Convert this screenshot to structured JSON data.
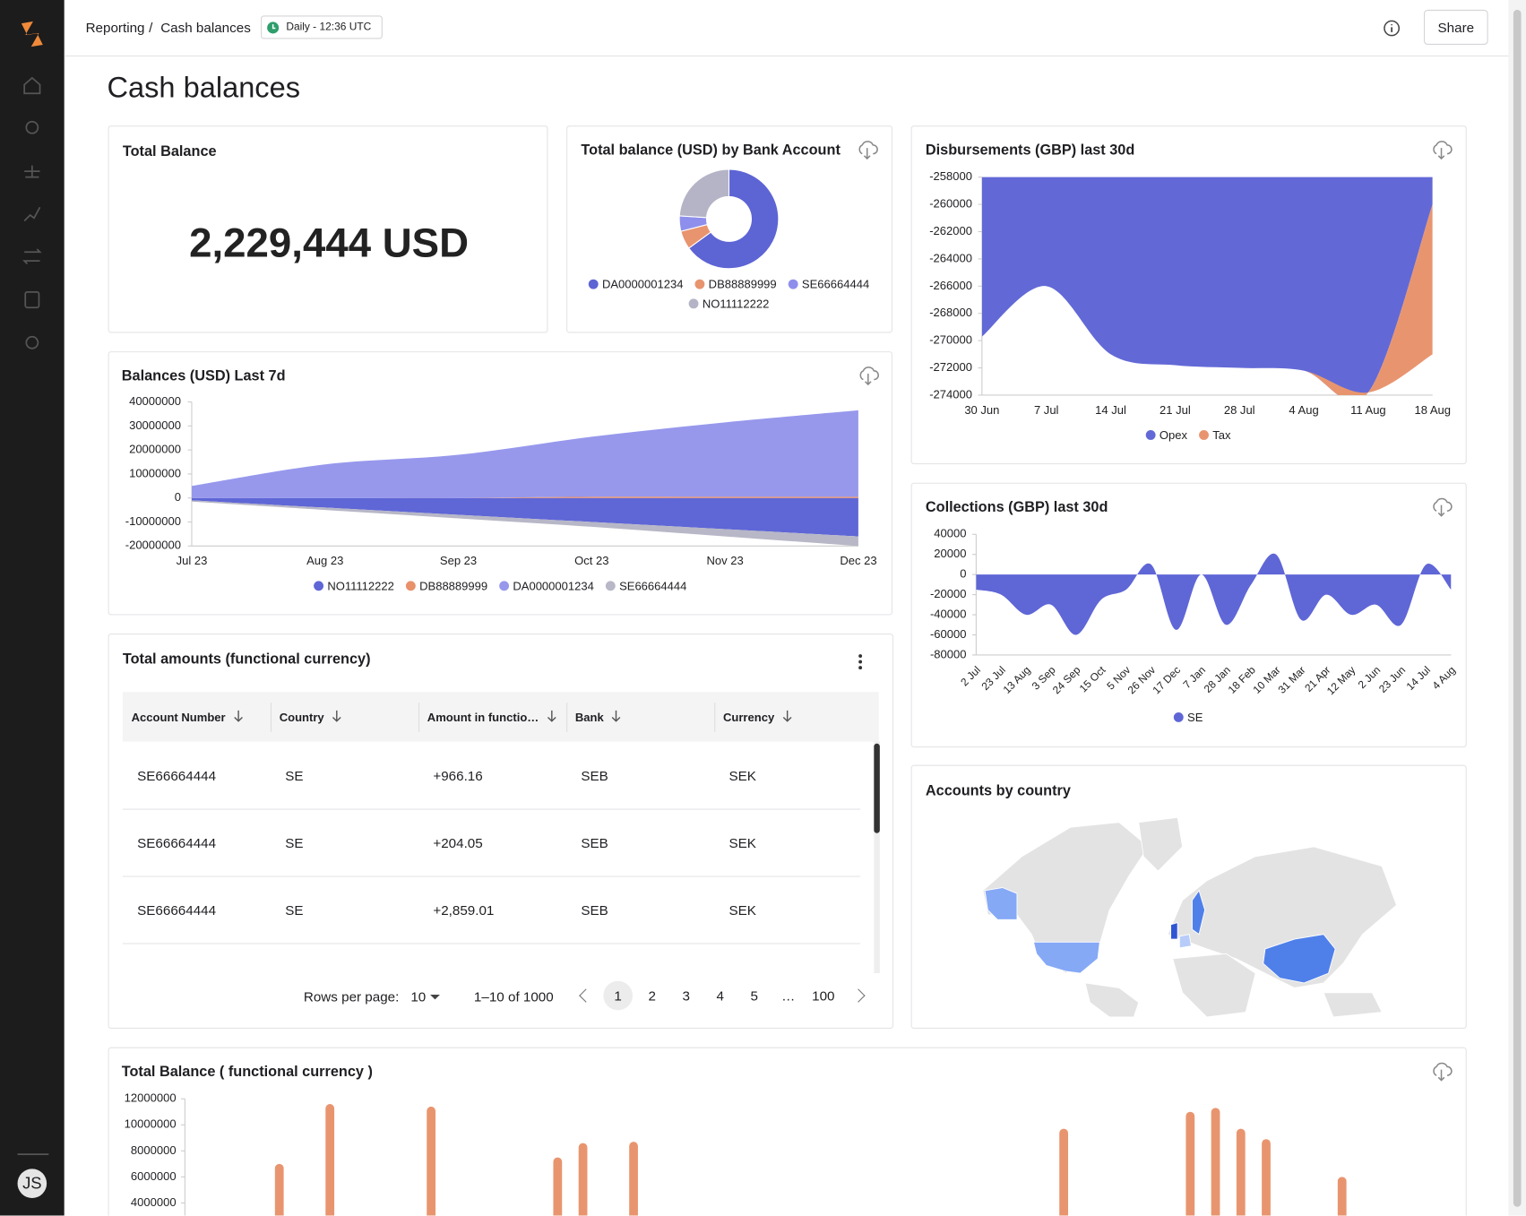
{
  "breadcrumb": [
    "Reporting",
    "Cash balances"
  ],
  "breadcrumb_separator": "/",
  "schedule": "Daily - 12:36 UTC",
  "share": "Share",
  "page_title": "Cash balances",
  "user_initials": "JS",
  "kpi": {
    "title": "Total Balance",
    "value": "2,229,444 USD"
  },
  "table": {
    "title": "Total amounts (functional currency)",
    "columns": [
      "Account Number",
      "Country",
      "Amount in functio…",
      "Bank",
      "Currency"
    ],
    "rows": [
      [
        "SE66664444",
        "SE",
        "+966.16",
        "SEB",
        "SEK"
      ],
      [
        "SE66664444",
        "SE",
        "+204.05",
        "SEB",
        "SEK"
      ],
      [
        "SE66664444",
        "SE",
        "+2,859.01",
        "SEB",
        "SEK"
      ]
    ]
  },
  "pagination": {
    "rows_per_page_label": "Rows per page:",
    "rows_per_page": "10",
    "range": "1–10 of 1000",
    "pages": [
      "1",
      "2",
      "3",
      "4",
      "5",
      "…",
      "100"
    ]
  },
  "map": {
    "title": "Accounts by country"
  },
  "chart_data": [
    {
      "type": "pie",
      "title": "Total balance (USD) by Bank Account",
      "categories": [
        "DA0000001234",
        "DB88889999",
        "SE66664444",
        "NO11112222"
      ],
      "values": [
        65,
        6,
        5,
        24
      ],
      "colors": [
        "#5d64d4",
        "#e8946f",
        "#8e8fec",
        "#b4b4c6"
      ]
    },
    {
      "type": "area",
      "title": "Balances (USD) Last 7d",
      "categories": [
        "Jul 23",
        "Aug 23",
        "Sep 23",
        "Oct 23",
        "Nov 23",
        "Dec 23"
      ],
      "series": [
        {
          "name": "NO11112222",
          "color": "#5f66d6",
          "values": [
            -1000000,
            -4000000,
            -7000000,
            -10000000,
            -13000000,
            -16000000
          ]
        },
        {
          "name": "DB88889999",
          "color": "#e8916b",
          "values": [
            0,
            0,
            0,
            500000,
            500000,
            500000
          ]
        },
        {
          "name": "DA0000001234",
          "color": "#9798ec",
          "values": [
            5000000,
            14000000,
            18000000,
            25000000,
            31000000,
            36000000
          ]
        },
        {
          "name": "SE66664444",
          "color": "#b7b7c7",
          "values": [
            -500000,
            -1000000,
            -1500000,
            -2000000,
            -3000000,
            -4000000
          ]
        }
      ],
      "ylim": [
        -20000000,
        40000000
      ],
      "yticks": [
        40000000,
        30000000,
        20000000,
        10000000,
        0,
        -10000000,
        -20000000
      ]
    },
    {
      "type": "area",
      "title": "Disbursements (GBP) last 30d",
      "categories": [
        "30 Jun",
        "7 Jul",
        "14 Jul",
        "21 Jul",
        "28 Jul",
        "4 Aug",
        "11 Aug",
        "18 Aug"
      ],
      "series": [
        {
          "name": "Opex",
          "color": "#6269d6",
          "values": [
            -269700,
            -266000,
            -271000,
            -271800,
            -272000,
            -272200,
            -273800,
            -260000
          ]
        },
        {
          "name": "Tax",
          "color": "#e8956f",
          "values": [
            0,
            0,
            0,
            0,
            0,
            0,
            0,
            -11000
          ]
        }
      ],
      "ylim": [
        -274000,
        -258000
      ],
      "yticks": [
        -258000,
        -260000,
        -262000,
        -264000,
        -266000,
        -268000,
        -270000,
        -272000,
        -274000
      ]
    },
    {
      "type": "area",
      "title": "Collections (GBP) last 30d",
      "categories": [
        "2 Jul",
        "23 Jul",
        "13 Aug",
        "3 Sep",
        "24 Sep",
        "15 Oct",
        "5 Nov",
        "26 Nov",
        "17 Dec",
        "7 Jan",
        "28 Jan",
        "18 Feb",
        "10 Mar",
        "31 Mar",
        "21 Apr",
        "12 May",
        "2 Jun",
        "23 Jun",
        "14 Jul",
        "4 Aug"
      ],
      "series": [
        {
          "name": "SE",
          "color": "#5f66d6",
          "values": [
            -15000,
            -20000,
            -40000,
            -30000,
            -60000,
            -25000,
            -15000,
            10000,
            -55000,
            0,
            -50000,
            -10000,
            20000,
            -45000,
            -20000,
            -40000,
            -30000,
            -50000,
            10000,
            -15000
          ]
        }
      ],
      "ylim": [
        -80000,
        40000
      ],
      "yticks": [
        40000,
        20000,
        0,
        -20000,
        -40000,
        -60000,
        -80000
      ]
    },
    {
      "type": "bar",
      "title": "Total Balance ( functional currency )",
      "color": "#e8956f",
      "categories": [
        null,
        null,
        null,
        null,
        null,
        null,
        null,
        null,
        null,
        null,
        null,
        null,
        null,
        null,
        null,
        null,
        null,
        null,
        null,
        null,
        null,
        null,
        null,
        null,
        null,
        null,
        null,
        null,
        null,
        null,
        null,
        null,
        null,
        null,
        null,
        null,
        null,
        null,
        null,
        null,
        null,
        null,
        null,
        null,
        null,
        null,
        null,
        null,
        null,
        null
      ],
      "values": [
        null,
        null,
        null,
        7000000,
        null,
        11600000,
        null,
        null,
        null,
        11400000,
        null,
        null,
        null,
        null,
        7500000,
        8600000,
        null,
        8700000,
        null,
        null,
        null,
        null,
        null,
        null,
        null,
        null,
        null,
        null,
        null,
        null,
        null,
        null,
        null,
        null,
        9700000,
        null,
        null,
        null,
        null,
        11000000,
        11300000,
        9700000,
        8900000,
        null,
        null,
        6000000,
        null,
        null,
        null,
        null
      ],
      "ylim": [
        0,
        12000000
      ],
      "yticks": [
        12000000,
        10000000,
        8000000,
        6000000,
        4000000
      ]
    }
  ]
}
